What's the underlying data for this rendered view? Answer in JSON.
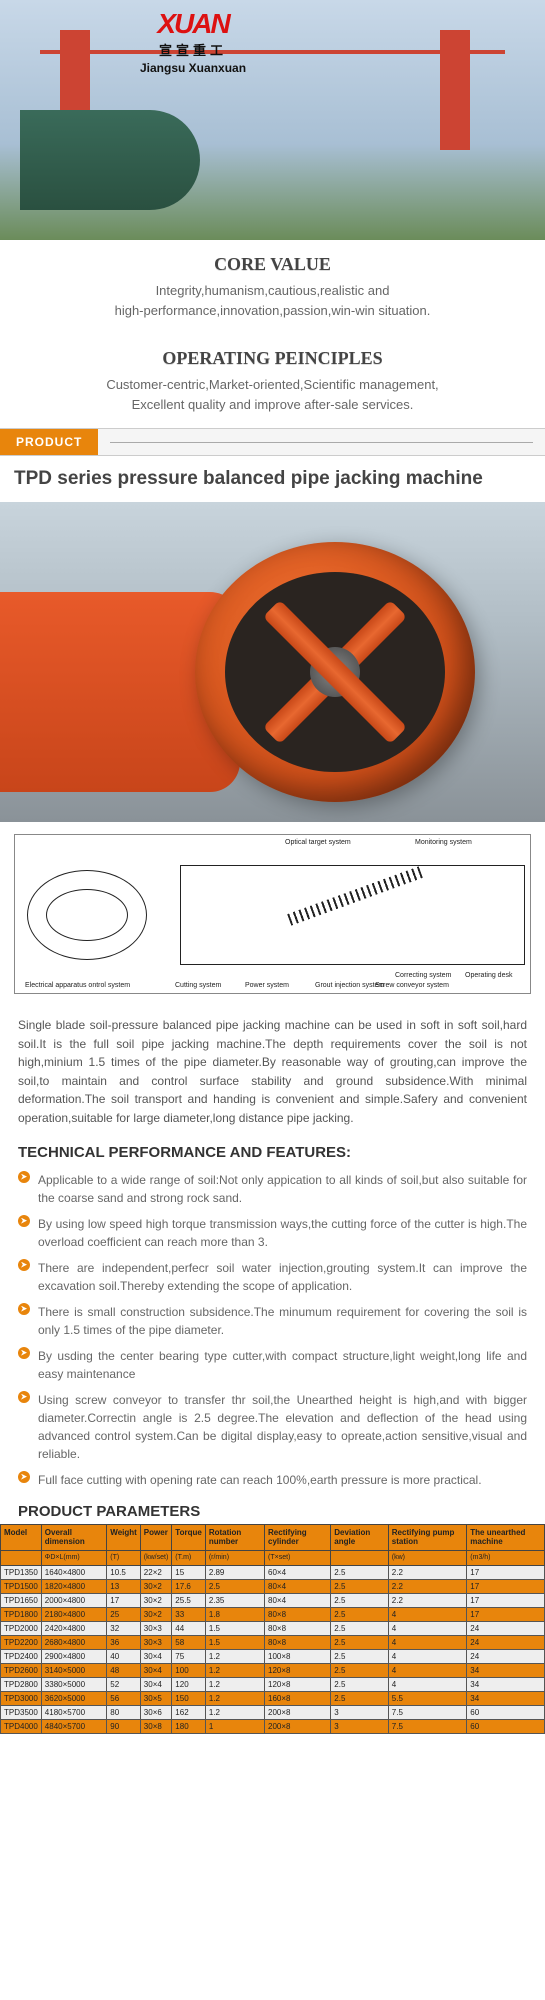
{
  "logo": {
    "mark": "XUAN",
    "cn": "宣宣重工",
    "en": "Jiangsu Xuanxuan"
  },
  "core": {
    "title": "CORE VALUE",
    "text1": "Integrity,humanism,cautious,realistic and",
    "text2": "high-performance,innovation,passion,win-win situation."
  },
  "op": {
    "title": "OPERATING PEINCIPLES",
    "text1": "Customer-centric,Market-oriented,Scientific management,",
    "text2": "Excellent quality and improve after-sale services."
  },
  "product_tab": "PRODUCT",
  "product_title": "TPD series pressure balanced pipe jacking machine",
  "diagram_labels": {
    "l1": "Electrical apparatus ontrol system",
    "l2": "Cutting system",
    "l3": "Power system",
    "l4": "Optical target system",
    "l5": "Monitoring system",
    "l6": "Grout injection system",
    "l7": "Correcting system",
    "l8": "Screw conveyor system",
    "l9": "Operating desk"
  },
  "description": "Single blade soil-pressure balanced pipe jacking machine can be used in soft in soft soil,hard soil.It is the full soil pipe jacking machine.The depth requirements cover the soil is not high,minium 1.5 times of the pipe diameter.By reasonable way of grouting,can improve the soil,to maintain and control surface stability and ground subsidence.With minimal deformation.The soil transport and handing is convenient and simple.Safery and convenient operation,suitable for large diameter,long distance pipe jacking.",
  "tpf_title": "TECHNICAL PERFORMANCE AND FEATURES:",
  "features": [
    "Applicable to a wide range of soil:Not only appication to all kinds of soil,but also suitable for the coarse sand and strong rock sand.",
    "By using low speed high torque transmission ways,the cutting force of the cutter is high.The overload coefficient can reach more than 3.",
    "There are independent,perfecr soil water injection,grouting system.It can improve the excavation soil.Thereby extending the scope of application.",
    "There is small construction subsidence.The minumum requirement for covering the soil is only 1.5 times of the pipe diameter.",
    "By usding the center bearing type cutter,with compact structure,light weight,long life and easy maintenance",
    "Using screw conveyor to transfer thr soil,the Unearthed height is high,and with bigger diameter.Correctin angle is 2.5 degree.The elevation and deflection of the head using advanced control system.Can be digital display,easy to opreate,action sensitive,visual and reliable.",
    "Full face cutting with opening rate can reach 100%,earth pressure is more practical."
  ],
  "param_title": "PRODUCT PARAMETERS",
  "table": {
    "headers": [
      "Model",
      "Overall dimension",
      "Weight",
      "Power",
      "Torque",
      "Rotation number",
      "Rectifying cylinder",
      "Deviation angle",
      "Rectifying pump station",
      "The unearthed machine"
    ],
    "subheaders": [
      "",
      "ΦD×L(mm)",
      "(T)",
      "(kw/set)",
      "(T.m)",
      "(r/min)",
      "(T×set)",
      "",
      "(kw)",
      "(m3/h)"
    ],
    "rows": [
      [
        "TPD1350",
        "1640×4800",
        "10.5",
        "22×2",
        "15",
        "2.89",
        "60×4",
        "2.5",
        "2.2",
        "17"
      ],
      [
        "TPD1500",
        "1820×4800",
        "13",
        "30×2",
        "17.6",
        "2.5",
        "80×4",
        "2.5",
        "2.2",
        "17"
      ],
      [
        "TPD1650",
        "2000×4800",
        "17",
        "30×2",
        "25.5",
        "2.35",
        "80×4",
        "2.5",
        "2.2",
        "17"
      ],
      [
        "TPD1800",
        "2180×4800",
        "25",
        "30×2",
        "33",
        "1.8",
        "80×8",
        "2.5",
        "4",
        "17"
      ],
      [
        "TPD2000",
        "2420×4800",
        "32",
        "30×3",
        "44",
        "1.5",
        "80×8",
        "2.5",
        "4",
        "24"
      ],
      [
        "TPD2200",
        "2680×4800",
        "36",
        "30×3",
        "58",
        "1.5",
        "80×8",
        "2.5",
        "4",
        "24"
      ],
      [
        "TPD2400",
        "2900×4800",
        "40",
        "30×4",
        "75",
        "1.2",
        "100×8",
        "2.5",
        "4",
        "24"
      ],
      [
        "TPD2600",
        "3140×5000",
        "48",
        "30×4",
        "100",
        "1.2",
        "120×8",
        "2.5",
        "4",
        "34"
      ],
      [
        "TPD2800",
        "3380×5000",
        "52",
        "30×4",
        "120",
        "1.2",
        "120×8",
        "2.5",
        "4",
        "34"
      ],
      [
        "TPD3000",
        "3620×5000",
        "56",
        "30×5",
        "150",
        "1.2",
        "160×8",
        "2.5",
        "5.5",
        "34"
      ],
      [
        "TPD3500",
        "4180×5700",
        "80",
        "30×6",
        "162",
        "1.2",
        "200×8",
        "3",
        "7.5",
        "60"
      ],
      [
        "TPD4000",
        "4840×5700",
        "90",
        "30×8",
        "180",
        "1",
        "200×8",
        "3",
        "7.5",
        "60"
      ]
    ],
    "highlight_rows": [
      1,
      3,
      5,
      7,
      9,
      11
    ]
  },
  "colors": {
    "accent": "#e8850c",
    "machine": "#e85a2a"
  }
}
